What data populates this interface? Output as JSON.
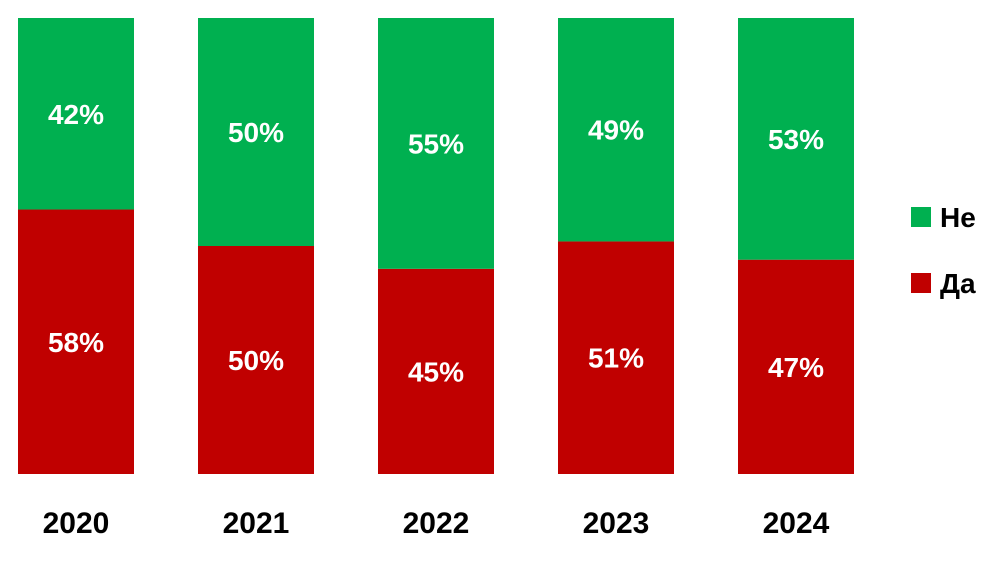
{
  "colors": {
    "no": "#00B050",
    "yes": "#C00000",
    "bar_label": "#FFFFFF",
    "text": "#000000"
  },
  "legend": {
    "items": [
      {
        "label": "Не",
        "color": "#00B050"
      },
      {
        "label": "Да",
        "color": "#C00000"
      }
    ],
    "placement": "right"
  },
  "chart_data": {
    "type": "bar",
    "stacked": true,
    "categories": [
      "2020",
      "2021",
      "2022",
      "2023",
      "2024"
    ],
    "series": [
      {
        "name": "Да",
        "color": "#C00000",
        "values": [
          58,
          50,
          45,
          51,
          47
        ],
        "labels": [
          "58%",
          "50%",
          "45%",
          "51%",
          "47%"
        ]
      },
      {
        "name": "Не",
        "color": "#00B050",
        "values": [
          42,
          50,
          55,
          49,
          53
        ],
        "labels": [
          "42%",
          "50%",
          "55%",
          "49%",
          "53%"
        ]
      }
    ],
    "ylim": [
      0,
      100
    ],
    "grid": false,
    "title": "",
    "xlabel": "",
    "ylabel": ""
  }
}
